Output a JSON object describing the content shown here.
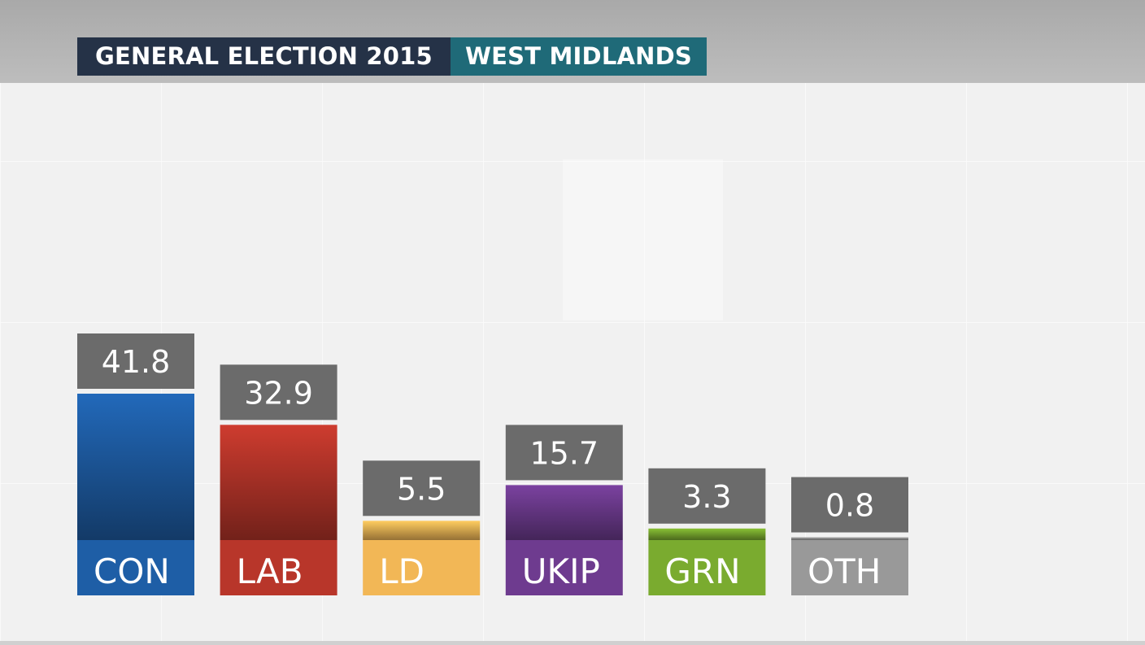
{
  "header": {
    "title": "GENERAL ELECTION 2015",
    "region": "WEST MIDLANDS"
  },
  "chart_data": {
    "type": "bar",
    "title": "",
    "xlabel": "",
    "ylabel": "",
    "categories": [
      "CON",
      "LAB",
      "LD",
      "UKIP",
      "GRN",
      "OTH"
    ],
    "values": [
      41.8,
      32.9,
      5.5,
      15.7,
      3.3,
      0.8
    ],
    "value_labels": [
      "41.8",
      "32.9",
      "5.5",
      "15.7",
      "3.3",
      "0.8"
    ],
    "colors": [
      "#1e5ea6",
      "#b8362a",
      "#f2b756",
      "#6e3b8f",
      "#7aab2f",
      "#999999"
    ],
    "legend": "none",
    "grid": false
  }
}
